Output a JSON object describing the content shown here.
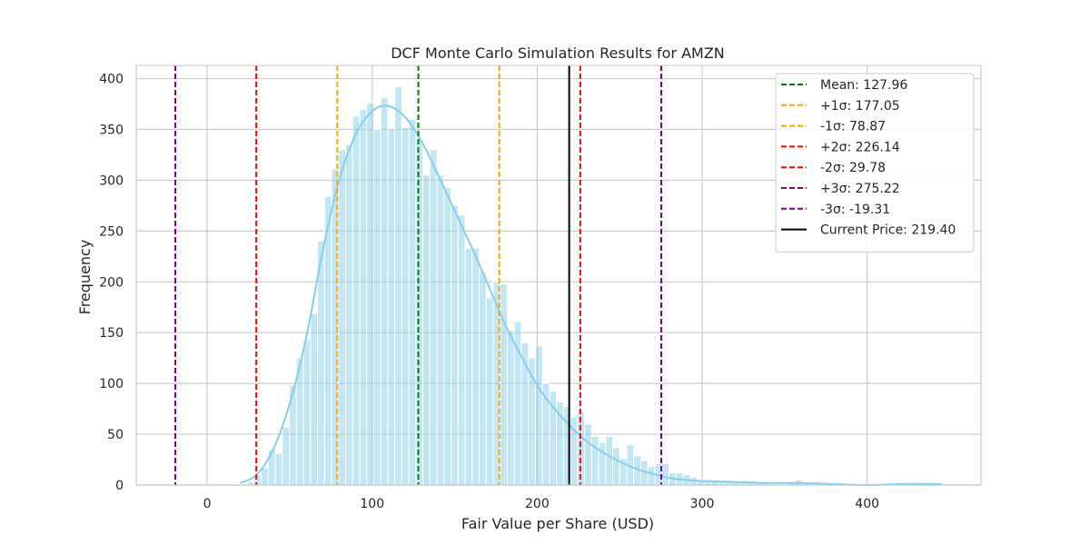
{
  "chart_data": {
    "type": "bar",
    "title": "DCF Monte Carlo Simulation Results for AMZN",
    "xlabel": "Fair Value per Share (USD)",
    "ylabel": "Frequency",
    "xlim": [
      -43,
      469
    ],
    "ylim": [
      0,
      413
    ],
    "xticks": [
      0,
      100,
      200,
      300,
      400
    ],
    "yticks": [
      0,
      50,
      100,
      150,
      200,
      250,
      300,
      350,
      400
    ],
    "grid": true,
    "legend_position": "top-right",
    "bin_start": 20,
    "bin_width": 4.26,
    "histogram_counts": [
      0,
      3,
      10,
      17,
      35,
      31,
      57,
      98,
      125,
      143,
      169,
      240,
      284,
      311,
      330,
      335,
      363,
      370,
      376,
      350,
      381,
      351,
      392,
      352,
      360,
      340,
      305,
      330,
      305,
      293,
      275,
      266,
      233,
      233,
      210,
      184,
      200,
      198,
      152,
      161,
      140,
      125,
      137,
      100,
      92,
      82,
      77,
      67,
      72,
      60,
      48,
      42,
      48,
      37,
      26,
      40,
      29,
      24,
      18,
      21,
      21,
      12,
      12,
      10,
      8,
      5,
      5,
      4,
      3,
      3,
      3,
      2,
      2,
      2,
      2,
      1,
      1,
      1,
      2,
      5,
      2,
      1,
      1,
      1,
      1,
      1,
      0,
      1,
      1,
      0,
      0,
      0,
      1,
      1,
      1,
      1,
      1,
      1,
      1,
      1
    ],
    "kde": {
      "x": [
        20,
        30,
        40,
        50,
        60,
        70,
        80,
        90,
        100,
        110,
        120,
        130,
        140,
        150,
        160,
        170,
        180,
        190,
        200,
        210,
        220,
        230,
        240,
        250,
        260,
        270,
        280,
        290,
        300,
        320,
        340,
        360,
        380,
        400,
        420,
        445
      ],
      "y": [
        2,
        10,
        35,
        80,
        145,
        230,
        300,
        345,
        368,
        373,
        362,
        338,
        305,
        270,
        235,
        198,
        160,
        128,
        98,
        76,
        58,
        43,
        32,
        23,
        16,
        11,
        7,
        5,
        4,
        3,
        2,
        2,
        1,
        0,
        1,
        1
      ]
    },
    "reference_lines": [
      {
        "label": "Mean: 127.96",
        "value": 127.96,
        "color": "#008000",
        "style": "dashed"
      },
      {
        "label": "+1σ: 177.05",
        "value": 177.05,
        "color": "#ffa500",
        "style": "dashed"
      },
      {
        "label": "-1σ: 78.87",
        "value": 78.87,
        "color": "#ffa500",
        "style": "dashed"
      },
      {
        "label": "+2σ: 226.14",
        "value": 226.14,
        "color": "#ff0000",
        "style": "dashed"
      },
      {
        "label": "-2σ: 29.78",
        "value": 29.78,
        "color": "#ff0000",
        "style": "dashed"
      },
      {
        "label": "+3σ: 275.22",
        "value": 275.22,
        "color": "#800080",
        "style": "dashed"
      },
      {
        "label": "-3σ: -19.31",
        "value": -19.31,
        "color": "#800080",
        "style": "dashed"
      },
      {
        "label": "Current Price: 219.40",
        "value": 219.4,
        "color": "#000000",
        "style": "solid"
      }
    ],
    "colors": {
      "bars": "#87ceeb",
      "kde": "#87ceeb",
      "grid": "#cccccc",
      "axes": "#cccccc"
    }
  }
}
